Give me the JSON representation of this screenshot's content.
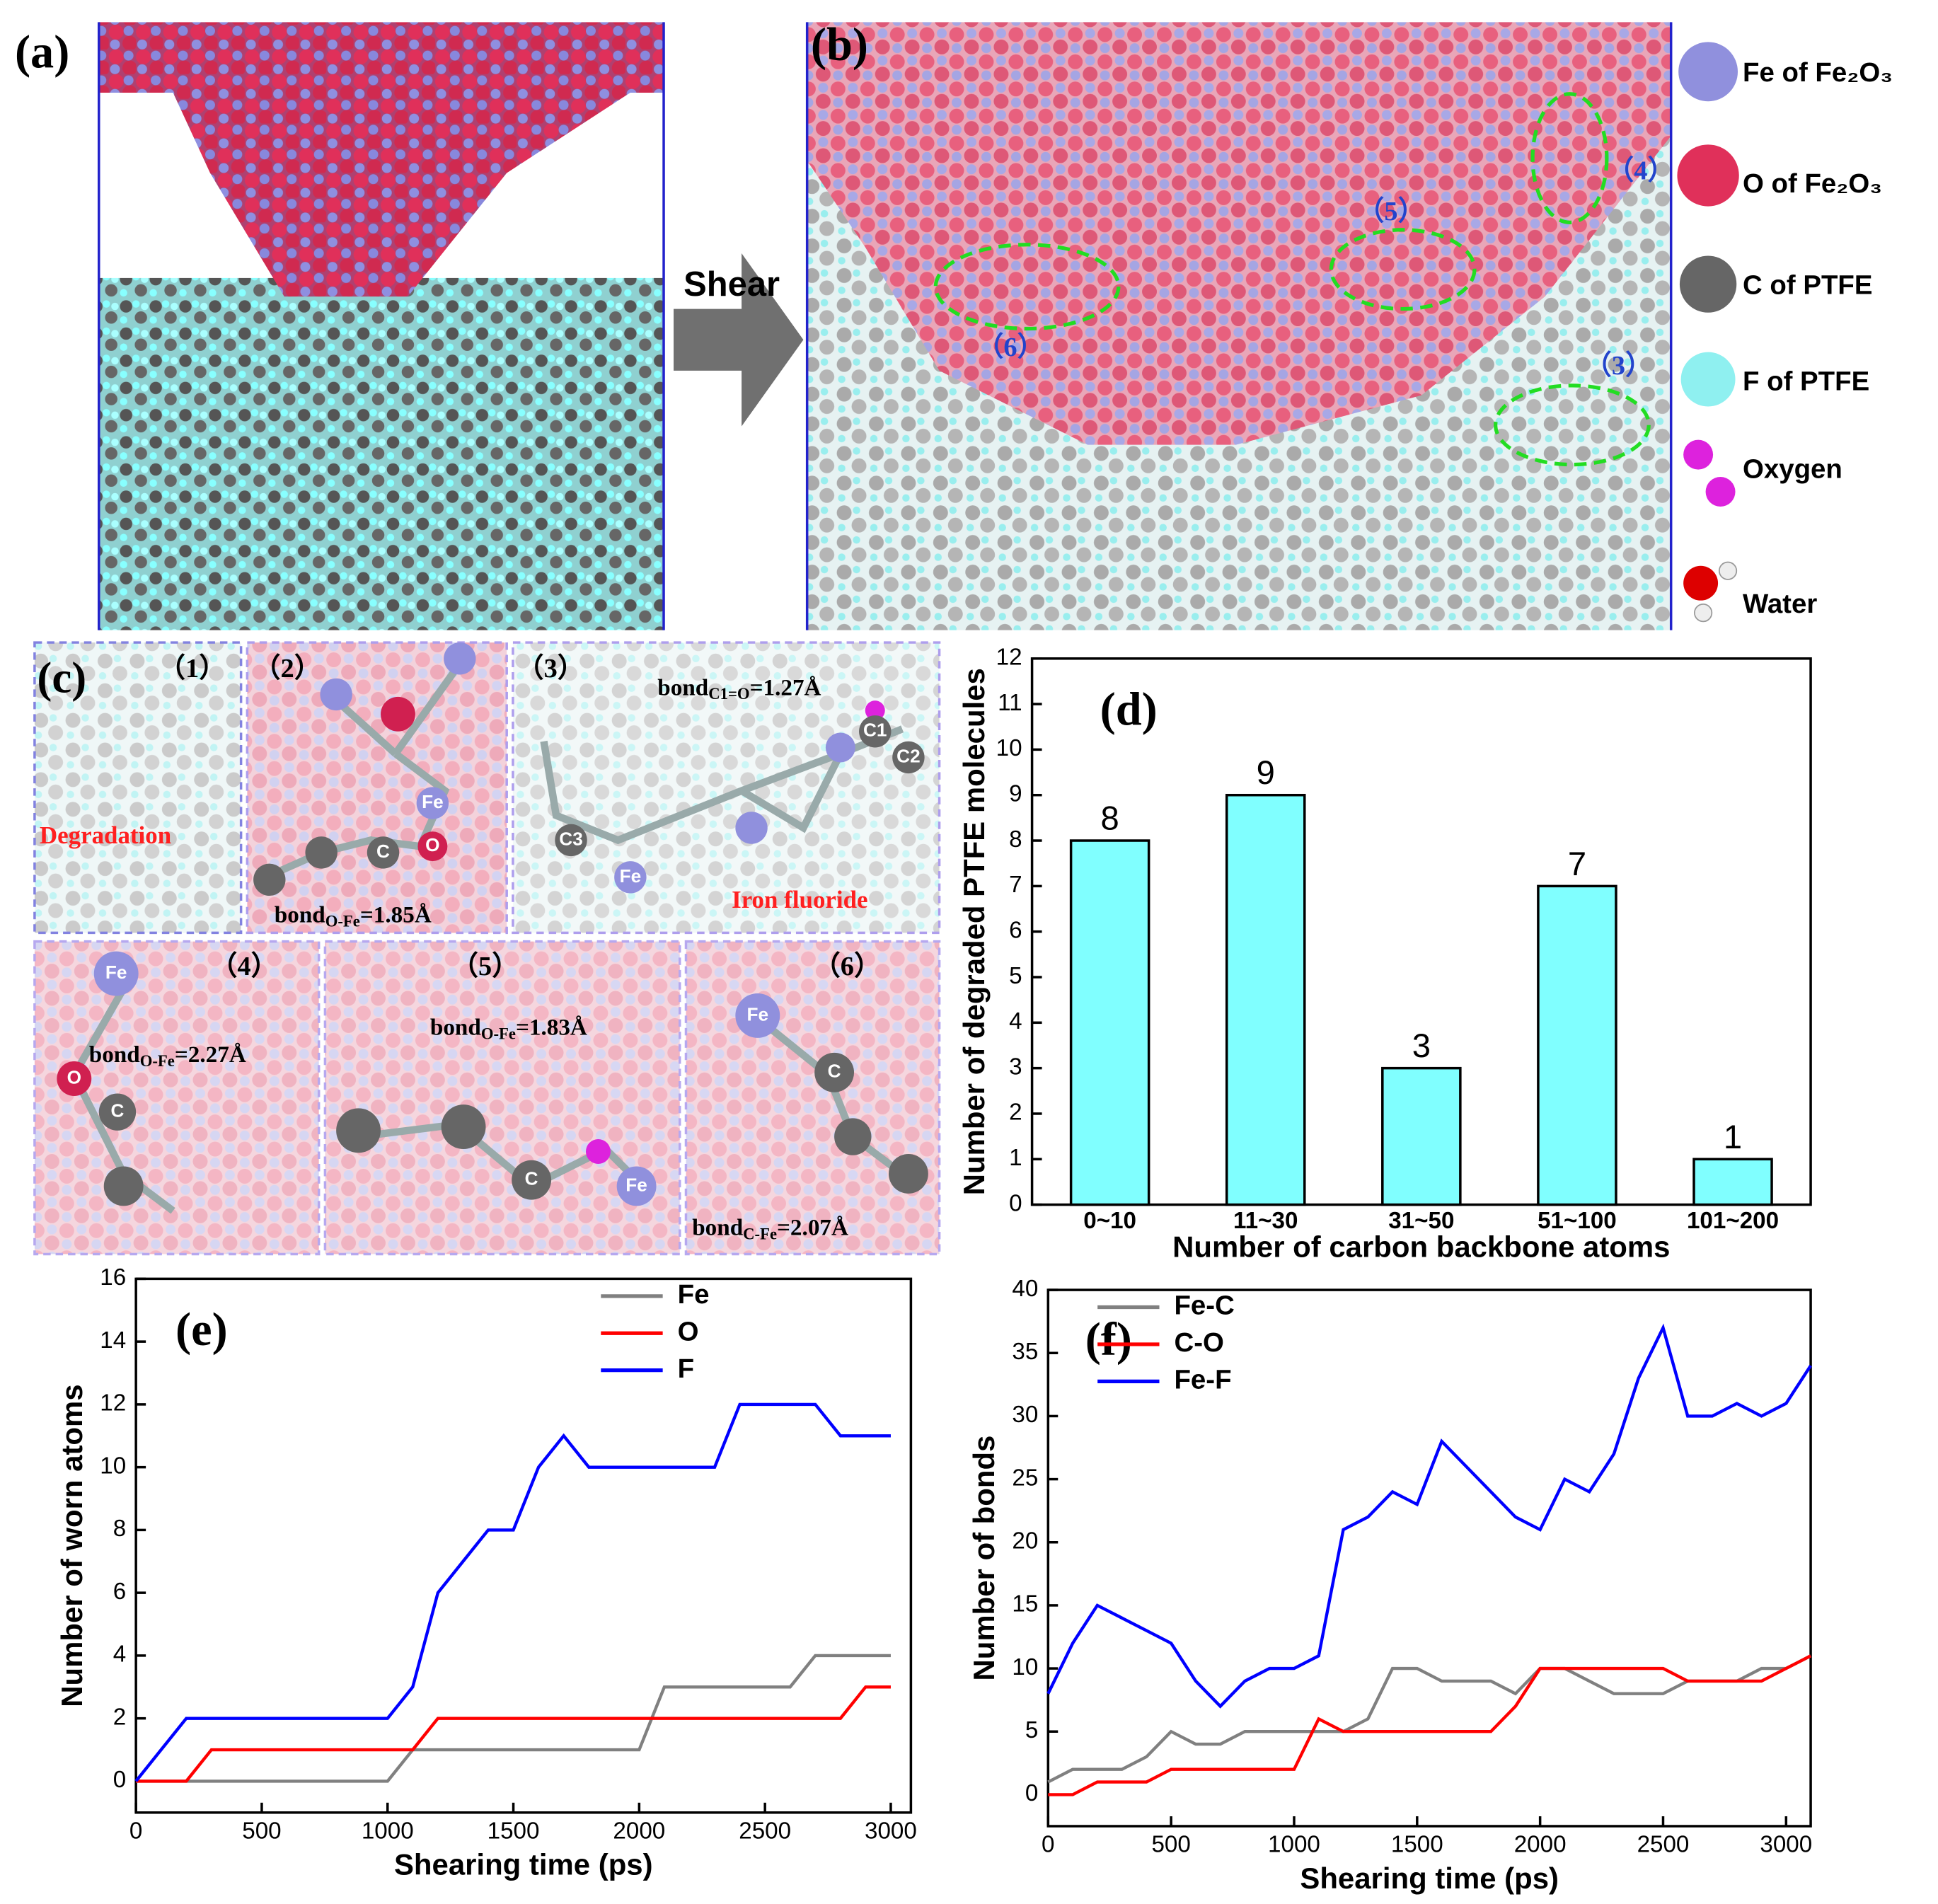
{
  "panels": {
    "a": "(a)",
    "b": "(b)",
    "shear": "Shear",
    "b_labels": [
      "（3）",
      "（4）",
      "（5）",
      "（6）"
    ],
    "legend": [
      "Fe of Fe₂O₃",
      "O of Fe₂O₃",
      "C of PTFE",
      "F of PTFE",
      "Oxygen",
      "Water"
    ],
    "c": "(c)",
    "c_labels": [
      "（1）",
      "（2）",
      "（3）",
      "（4）",
      "（5）",
      "（6）"
    ],
    "degradation": "Degradation",
    "iron_fluoride": "Iron fluoride",
    "bonds": [
      {
        "bond": "bond",
        "sub": "O-Fe",
        "value": "=1.85Å"
      },
      {
        "bond": "bond",
        "sub": "C1=O",
        "value": "=1.27Å"
      },
      {
        "bond": "bond",
        "sub": "O-Fe",
        "value": "=2.27Å"
      },
      {
        "bond": "bond",
        "sub": "O-Fe",
        "value": "=1.83Å"
      },
      {
        "bond": "bond",
        "sub": "C-Fe",
        "value": "=2.07Å"
      }
    ],
    "atoms": [
      "Fe",
      "C",
      "O",
      "C1",
      "C2",
      "C3",
      "Fe",
      "Fe",
      "O",
      "C",
      "C",
      "Fe",
      "Fe",
      "C"
    ]
  },
  "chart_data": [
    {
      "type": "bar",
      "panel_label": "(d)",
      "ylabel": "Number of degraded PTFE molecules",
      "xlabel": "Number of carbon backbone atoms",
      "categories": [
        "0~10",
        "11~30",
        "31~50",
        "51~100",
        "101~200"
      ],
      "values": [
        8,
        9,
        3,
        7,
        1
      ],
      "color": "#80ffff",
      "ylim": [
        0,
        12
      ],
      "yticks": [
        0,
        1,
        2,
        3,
        4,
        5,
        6,
        7,
        8,
        9,
        10,
        11,
        12
      ]
    },
    {
      "type": "line",
      "panel_label": "(e)",
      "ylabel": "Number of  worn atoms",
      "xlabel": "Shearing time (ps)",
      "legend": "upper center",
      "x": [
        0,
        100,
        200,
        300,
        400,
        500,
        600,
        700,
        800,
        900,
        1000,
        1100,
        1200,
        1300,
        1400,
        1500,
        1600,
        1700,
        1800,
        1900,
        2000,
        2100,
        2200,
        2300,
        2400,
        2500,
        2600,
        2700,
        2800,
        2900,
        3000
      ],
      "series": [
        {
          "name": "Fe",
          "color": "#808080",
          "values": [
            0,
            0,
            0,
            0,
            0,
            0,
            0,
            0,
            0,
            0,
            0,
            1,
            1,
            1,
            1,
            1,
            1,
            1,
            1,
            1,
            1,
            3,
            3,
            3,
            3,
            3,
            3,
            4,
            4,
            4,
            4
          ]
        },
        {
          "name": "O",
          "color": "#ff0000",
          "values": [
            0,
            0,
            0,
            1,
            1,
            1,
            1,
            1,
            1,
            1,
            1,
            1,
            2,
            2,
            2,
            2,
            2,
            2,
            2,
            2,
            2,
            2,
            2,
            2,
            2,
            2,
            2,
            2,
            2,
            3,
            3
          ]
        },
        {
          "name": "F",
          "color": "#0000ff",
          "values": [
            0,
            1,
            2,
            2,
            2,
            2,
            2,
            2,
            2,
            2,
            2,
            3,
            6,
            7,
            8,
            8,
            10,
            11,
            10,
            10,
            10,
            10,
            10,
            10,
            12,
            12,
            12,
            12,
            11,
            11,
            11
          ]
        }
      ],
      "xlim": [
        0,
        3080
      ],
      "xticks": [
        0,
        500,
        1000,
        1500,
        2000,
        2500,
        3000
      ],
      "ylim": [
        -1,
        16
      ],
      "yticks": [
        0,
        2,
        4,
        6,
        8,
        10,
        12,
        14,
        16
      ]
    },
    {
      "type": "line",
      "panel_label": "(f)",
      "ylabel": "Number of bonds",
      "xlabel": "Shearing time (ps)",
      "legend": "upper left",
      "x": [
        0,
        100,
        200,
        300,
        400,
        500,
        600,
        700,
        800,
        900,
        1000,
        1100,
        1200,
        1300,
        1400,
        1500,
        1600,
        1700,
        1800,
        1900,
        2000,
        2100,
        2200,
        2300,
        2400,
        2500,
        2600,
        2700,
        2800,
        2900,
        3000,
        3100
      ],
      "series": [
        {
          "name": "Fe-C",
          "color": "#808080",
          "values": [
            1,
            2,
            2,
            2,
            3,
            5,
            4,
            4,
            5,
            5,
            5,
            5,
            5,
            6,
            10,
            10,
            9,
            9,
            9,
            8,
            10,
            10,
            9,
            8,
            8,
            8,
            9,
            9,
            9,
            10,
            10,
            11
          ]
        },
        {
          "name": "C-O",
          "color": "#ff0000",
          "values": [
            0,
            0,
            1,
            1,
            1,
            2,
            2,
            2,
            2,
            2,
            2,
            6,
            5,
            5,
            5,
            5,
            5,
            5,
            5,
            7,
            10,
            10,
            10,
            10,
            10,
            10,
            9,
            9,
            9,
            9,
            10,
            11
          ]
        },
        {
          "name": "Fe-F",
          "color": "#0000ff",
          "values": [
            8,
            12,
            15,
            14,
            13,
            12,
            9,
            7,
            9,
            10,
            10,
            11,
            21,
            22,
            24,
            23,
            28,
            26,
            24,
            22,
            21,
            25,
            24,
            27,
            33,
            37,
            30,
            30,
            31,
            30,
            31,
            34
          ]
        }
      ],
      "xlim": [
        0,
        3100
      ],
      "xticks": [
        0,
        500,
        1000,
        1500,
        2000,
        2500,
        3000
      ],
      "ylim": [
        -2.5,
        40
      ],
      "yticks": [
        0,
        5,
        10,
        15,
        20,
        25,
        30,
        35,
        40
      ]
    }
  ]
}
